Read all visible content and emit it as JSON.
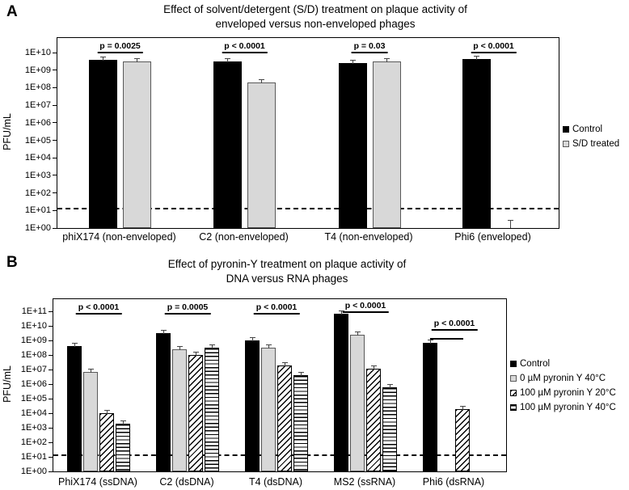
{
  "figure": {
    "panel_a_label": "A",
    "panel_b_label": "B"
  },
  "chart_data": [
    {
      "panel": "A",
      "type": "bar",
      "yscale": "log",
      "grid": false,
      "legend_position": "right",
      "title": "Effect of solvent/detergent (S/D) treatment on plaque activity of enveloped versus non-enveloped phages",
      "title_line1": "Effect of solvent/detergent (S/D) treatment on plaque activity of",
      "title_line2": "enveloped versus non-enveloped phages",
      "ylabel": "PFU/mL",
      "ylim": [
        1,
        10000000000.0
      ],
      "ytick_labels": [
        "1E+10",
        "1E+09",
        "1E+08",
        "1E+07",
        "1E+06",
        "1E+05",
        "1E+04",
        "1E+03",
        "1E+02",
        "1E+01",
        "1E+00"
      ],
      "categories": [
        "phiX174 (non-enveloped)",
        "C2 (non-enveloped)",
        "T4 (non-enveloped)",
        "Phi6 (enveloped)"
      ],
      "series": [
        {
          "name": "Control",
          "pattern": "solid-black",
          "values": [
            4000000000.0,
            3000000000.0,
            2500000000.0,
            4500000000.0
          ]
        },
        {
          "name": "S/D treated",
          "pattern": "light-gray",
          "values": [
            3000000000.0,
            200000000.0,
            3000000000.0,
            null
          ],
          "below_detection": [
            3
          ]
        }
      ],
      "p_values": [
        "p = 0.0025",
        "p < 0.0001",
        "p = 0.03",
        "p < 0.0001"
      ],
      "dashed_line_value": 14
    },
    {
      "panel": "B",
      "type": "bar",
      "yscale": "log",
      "grid": false,
      "legend_position": "right",
      "title": "Effect of pyronin-Y treatment on plaque activity of DNA versus RNA phages",
      "title_line1": "Effect of pyronin-Y treatment on plaque activity of",
      "title_line2": "DNA versus RNA phages",
      "ylabel": "PFU/mL",
      "ylim": [
        1,
        100000000000.0
      ],
      "ytick_labels": [
        "1E+11",
        "1E+10",
        "1E+09",
        "1E+08",
        "1E+07",
        "1E+06",
        "1E+05",
        "1E+04",
        "1E+03",
        "1E+02",
        "1E+01",
        "1E+00"
      ],
      "categories": [
        "PhiX174 (ssDNA)",
        "C2 (dsDNA)",
        "T4 (dsDNA)",
        "MS2 (ssRNA)",
        "Phi6 (dsRNA)"
      ],
      "series": [
        {
          "name": "Control",
          "pattern": "solid-black",
          "values": [
            400000000.0,
            3000000000.0,
            1000000000.0,
            70000000000.0,
            700000000.0
          ]
        },
        {
          "name": "0 µM pyronin Y 40°C",
          "pattern": "light-gray",
          "values": [
            7000000.0,
            250000000.0,
            300000000.0,
            2500000000.0,
            null
          ]
        },
        {
          "name": "100 µM pyronin Y 20°C",
          "pattern": "diag-hatch",
          "values": [
            10000.0,
            100000000.0,
            20000000.0,
            12000000.0,
            20000.0
          ]
        },
        {
          "name": "100 µM pyronin Y 40°C",
          "pattern": "h-lines",
          "values": [
            2000.0,
            300000000.0,
            4000000.0,
            600000.0,
            null
          ]
        }
      ],
      "p_values": [
        "p < 0.0001",
        "p = 0.0005",
        "p < 0.0001",
        "p < 0.0001",
        "p < 0.0001"
      ],
      "dashed_line_value": 14
    }
  ]
}
